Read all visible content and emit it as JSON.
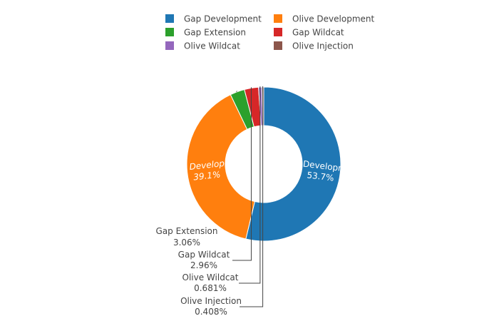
{
  "chart_data": {
    "type": "pie",
    "hole": true,
    "legend_position": "top",
    "slices": [
      {
        "label": "Gap Development",
        "value": 53.7,
        "percent_text": "53.7%",
        "color": "#1f77b4"
      },
      {
        "label": "Olive Development",
        "value": 39.1,
        "percent_text": "39.1%",
        "color": "#ff7f0e"
      },
      {
        "label": "Gap Extension",
        "value": 3.06,
        "percent_text": "3.06%",
        "color": "#2ca02c"
      },
      {
        "label": "Gap Wildcat",
        "value": 2.96,
        "percent_text": "2.96%",
        "color": "#d62728"
      },
      {
        "label": "Olive Wildcat",
        "value": 0.681,
        "percent_text": "0.681%",
        "color": "#9467bd"
      },
      {
        "label": "Olive Injection",
        "value": 0.408,
        "percent_text": "0.408%",
        "color": "#8c564b"
      }
    ]
  }
}
